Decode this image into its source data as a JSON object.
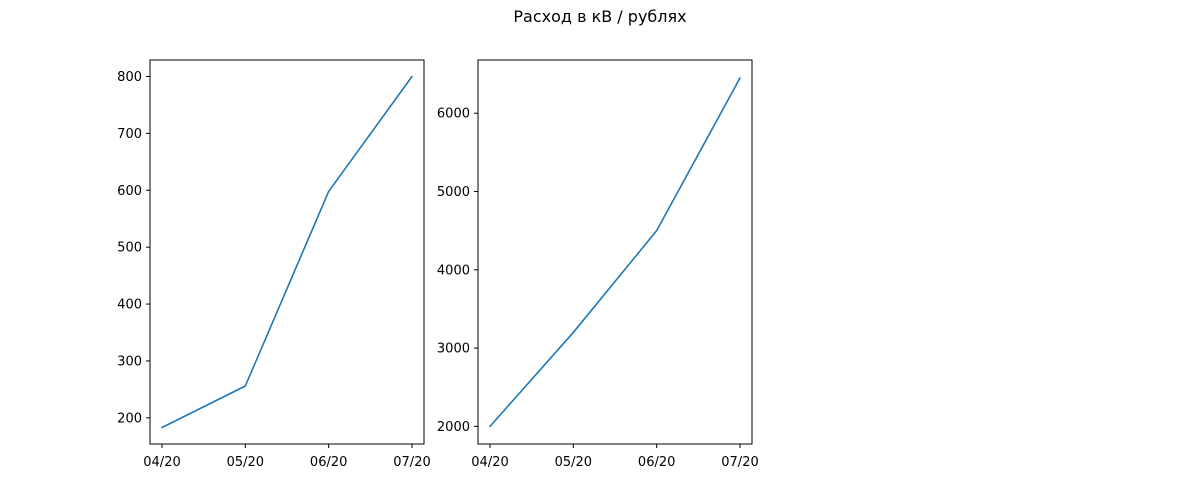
{
  "figure": {
    "title": "Расход в кВ / рублях"
  },
  "chart_data": [
    {
      "type": "line",
      "title": "",
      "xlabel": "",
      "ylabel": "",
      "categories": [
        "04/20",
        "05/20",
        "06/20",
        "07/20"
      ],
      "series": [
        {
          "values": [
            183,
            256,
            598,
            800
          ],
          "color": "#1f77b4"
        }
      ],
      "ylim": [
        154,
        829
      ],
      "yticks": [
        200,
        300,
        400,
        500,
        600,
        700,
        800
      ],
      "grid": false
    },
    {
      "type": "line",
      "title": "",
      "xlabel": "",
      "ylabel": "",
      "categories": [
        "04/20",
        "05/20",
        "06/20",
        "07/20"
      ],
      "series": [
        {
          "values": [
            2000,
            3200,
            4500,
            6450
          ],
          "color": "#1f77b4"
        }
      ],
      "ylim": [
        1775,
        6680
      ],
      "yticks": [
        2000,
        3000,
        4000,
        5000,
        6000
      ],
      "grid": false
    }
  ]
}
